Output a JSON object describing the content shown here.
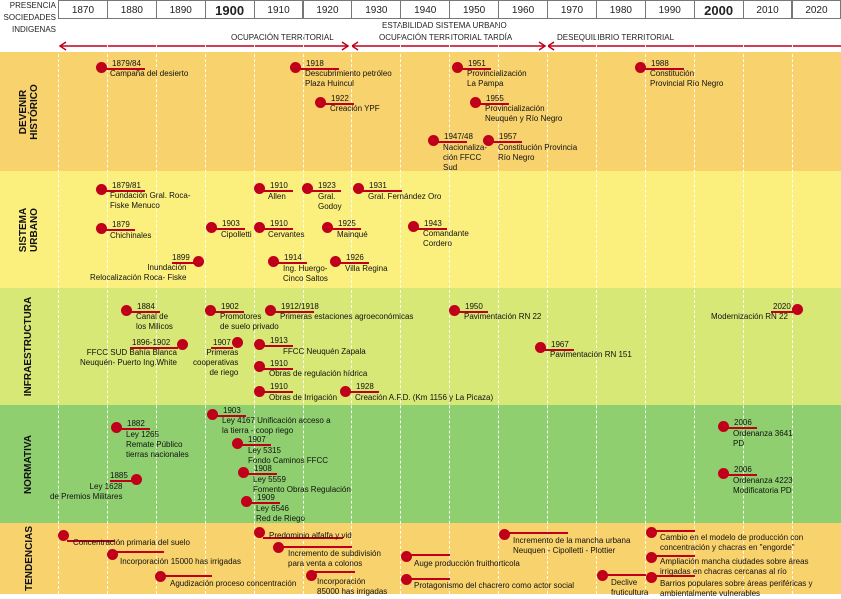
{
  "header": {
    "presence_label": [
      "PRESENCIA",
      "SOCIEDADES",
      "INDIGENAS"
    ],
    "decades": [
      "1870",
      "1880",
      "1890",
      "1900",
      "1910",
      "1920",
      "1930",
      "1940",
      "1950",
      "1960",
      "1970",
      "1980",
      "1990",
      "2000",
      "2010",
      "2020"
    ],
    "highlight_decades": [
      "1900",
      "2000"
    ],
    "periods": [
      "OCUPACIÓN TERRITORIAL",
      "ESTABILIDAD SISTEMA URBANO",
      "OCUPACIÓN TERRITORIAL TARDÍA",
      "DESEQUILIBRIO TERRITORIAL"
    ]
  },
  "colors": {
    "accent": "#c0001a",
    "devenir": "#f8d26c",
    "sistema": "#fbf07e",
    "infra": "#d7e877",
    "normativa": "#8fcf6f",
    "tendencias": "#f8d26c"
  },
  "bands": [
    {
      "key": "devenir",
      "label": [
        "DEVENIR",
        "HISTÓRICO"
      ]
    },
    {
      "key": "sistema",
      "label": [
        "SISTEMA",
        "URBANO"
      ]
    },
    {
      "key": "infra",
      "label": [
        "INFRAESTRUCTURA"
      ]
    },
    {
      "key": "normativa",
      "label": [
        "NORMATIVA"
      ]
    },
    {
      "key": "tendencias",
      "label": [
        "TENDENCIAS"
      ]
    }
  ],
  "events": [
    {
      "band": "devenir",
      "year": "1879/84",
      "text": "Campaña del desierto"
    },
    {
      "band": "devenir",
      "year": "1918",
      "text": "Descubrimiento petróleo\nPlaza Huincul"
    },
    {
      "band": "devenir",
      "year": "1922",
      "text": "Creación YPF"
    },
    {
      "band": "devenir",
      "year": "1951",
      "text": "Provincialización\nLa Pampa"
    },
    {
      "band": "devenir",
      "year": "1955",
      "text": "Provincialización\nNeuquén y Río Negro"
    },
    {
      "band": "devenir",
      "year": "1947/48",
      "text": "Nacionaliza-\nción FFCC\nSud"
    },
    {
      "band": "devenir",
      "year": "1957",
      "text": "Constitución Provincia\nRío Negro"
    },
    {
      "band": "devenir",
      "year": "1988",
      "text": "Constitución\nProvincial Río Negro"
    },
    {
      "band": "sistema",
      "year": "1879/81",
      "text": "Fundación Gral. Roca-\nFiske Menuco"
    },
    {
      "band": "sistema",
      "year": "1910",
      "text": "Allen"
    },
    {
      "band": "sistema",
      "year": "1923",
      "text": "Gral.\nGodoy"
    },
    {
      "band": "sistema",
      "year": "1931",
      "text": "Gral. Fernández Oro"
    },
    {
      "band": "sistema",
      "year": "1879",
      "text": "Chichinales"
    },
    {
      "band": "sistema",
      "year": "1903",
      "text": "Cipolletti"
    },
    {
      "band": "sistema",
      "year": "1910",
      "text": "Cervantes"
    },
    {
      "band": "sistema",
      "year": "1925",
      "text": "Mainqué"
    },
    {
      "band": "sistema",
      "year": "1943",
      "text": "Comandante\nCordero"
    },
    {
      "band": "sistema",
      "year": "1899",
      "text": "Inundación\nRelocalización Roca- Fiske"
    },
    {
      "band": "sistema",
      "year": "1914",
      "text": "Ing. Huergo-\nCinco Saltos"
    },
    {
      "band": "sistema",
      "year": "1926",
      "text": "Villa Regina"
    },
    {
      "band": "infra",
      "year": "1884",
      "text": "Canal de\nlos Milicos"
    },
    {
      "band": "infra",
      "year": "1902",
      "text": "Promotores\nde suelo privado"
    },
    {
      "band": "infra",
      "year": "1912/1918",
      "text": "Primeras estaciones agroeconómicas"
    },
    {
      "band": "infra",
      "year": "1950",
      "text": "Pavimentación RN 22"
    },
    {
      "band": "infra",
      "year": "2020",
      "text": "Modernización RN 22"
    },
    {
      "band": "infra",
      "year": "1896-1902",
      "text": "FFCC SUD Bahía Blanca\nNeuquén- Puerto Ing.White"
    },
    {
      "band": "infra",
      "year": "1907",
      "text": "Primeras\ncooperativas\nde riego"
    },
    {
      "band": "infra",
      "year": "1913",
      "text": "FFCC Neuquén Zapala"
    },
    {
      "band": "infra",
      "year": "1967",
      "text": "Pavimentación RN 151"
    },
    {
      "band": "infra",
      "year": "1910",
      "text": "Obras de regulación hídrica"
    },
    {
      "band": "infra",
      "year": "1910",
      "text": "Obras de Irrigación"
    },
    {
      "band": "infra",
      "year": "1928",
      "text": "Creación A.F.D. (Km 1156 y La Picaza)"
    },
    {
      "band": "normativa",
      "year": "1903",
      "text": "Ley 4167 Unificación acceso a\nla tierra - coop riego"
    },
    {
      "band": "normativa",
      "year": "1882",
      "text": "Ley 1265\nRemate Público\ntierras nacionales"
    },
    {
      "band": "normativa",
      "year": "1907",
      "text": "Ley 5315\nFondo Caminos FFCC"
    },
    {
      "band": "normativa",
      "year": "1908",
      "text": "Ley 5559\nFomento Obras Regulación"
    },
    {
      "band": "normativa",
      "year": "1909",
      "text": "Ley 6546\nRed de Riego"
    },
    {
      "band": "normativa",
      "year": "1885",
      "text": "Ley 1628\nde Premios Militares"
    },
    {
      "band": "normativa",
      "year": "2006",
      "text": "Ordenanza 3641\nPD"
    },
    {
      "band": "normativa",
      "year": "2006",
      "text": "Ordenanza 4223\nModificatoria PD"
    },
    {
      "band": "tendencias",
      "year": "",
      "text": "Concentración primaria del suelo"
    },
    {
      "band": "tendencias",
      "year": "",
      "text": "Incorporación 15000 has irrigadas"
    },
    {
      "band": "tendencias",
      "year": "",
      "text": "Agudización proceso concentración"
    },
    {
      "band": "tendencias",
      "year": "",
      "text": "Predominio alfalfa y vid"
    },
    {
      "band": "tendencias",
      "year": "",
      "text": "Incremento de subdivisión\npara venta a colonos"
    },
    {
      "band": "tendencias",
      "year": "",
      "text": "Incorporación\n85000 has irrigadas"
    },
    {
      "band": "tendencias",
      "year": "",
      "text": "Incremento de la mancha urbana\nNeuquen - Cipolletti - Plottier"
    },
    {
      "band": "tendencias",
      "year": "",
      "text": "Auge producción fruithorticola"
    },
    {
      "band": "tendencias",
      "year": "",
      "text": "Protagonismo del chacrero como actor social"
    },
    {
      "band": "tendencias",
      "year": "",
      "text": "Cambio en el modelo de producción con\nconcentración y chacras en \"engorde\""
    },
    {
      "band": "tendencias",
      "year": "",
      "text": "Ampliación mancha ciudades sobre áreas\nirrigadas en chacras cercanas al río"
    },
    {
      "band": "tendencias",
      "year": "",
      "text": "Declive\nfruticultura"
    },
    {
      "band": "tendencias",
      "year": "",
      "text": "Barrios populares sobre áreas periféricas y\nambientalmente vulnerables"
    }
  ]
}
